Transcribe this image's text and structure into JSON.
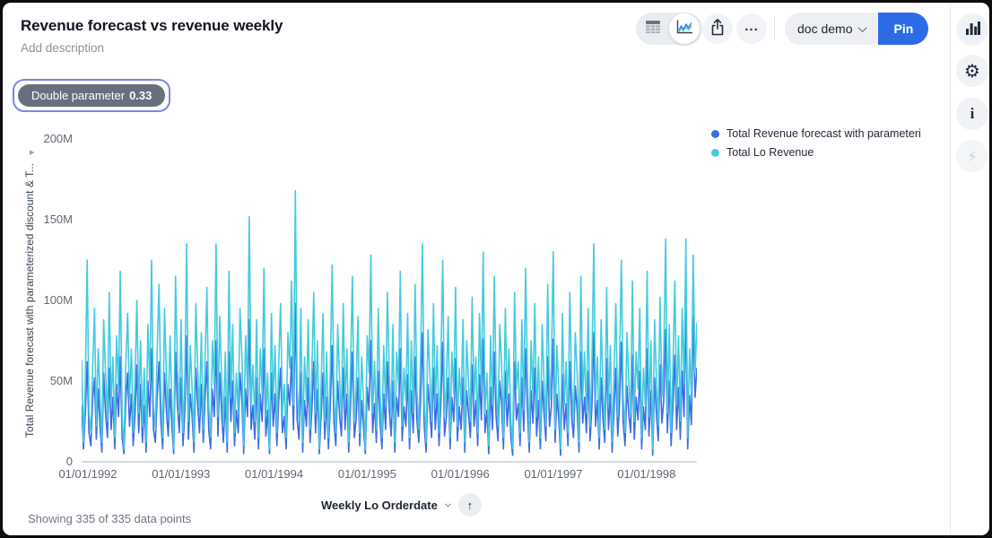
{
  "header": {
    "title": "Revenue forecast vs revenue weekly",
    "description_placeholder": "Add description"
  },
  "parameter": {
    "label": "Double parameter",
    "value": "0.33"
  },
  "toolbar": {
    "view_toggle": {
      "options": [
        "table-view",
        "chart-view"
      ],
      "selected": "chart-view"
    },
    "icons": {
      "table_view": "grid-icon",
      "chart_view": "mini-line-chart-icon",
      "share": "share-arrow-icon",
      "more": "ellipsis-icon"
    },
    "doc_dropdown_label": "doc demo",
    "pin_label": "Pin"
  },
  "sidebar_icons": [
    "bar-chart-icon",
    "gear-icon",
    "info-icon",
    "lightning-icon"
  ],
  "x_axis_control": {
    "label": "Weekly Lo Orderdate",
    "chevron": "chevron-down-icon",
    "sort": "arrow-up-icon"
  },
  "status": {
    "text": "Showing 335 of 335 data points"
  },
  "chart_data": {
    "type": "line",
    "title": "Revenue forecast vs revenue weekly",
    "ylabel": "Total Revenue forecast with parameterized discount & T...",
    "xlabel": "Weekly Lo Orderdate",
    "ylim": [
      0,
      200
    ],
    "unit": "M",
    "grid": false,
    "legend_position": "top-right",
    "y_ticks": [
      {
        "label": "200M",
        "value": 200
      },
      {
        "label": "150M",
        "value": 150
      },
      {
        "label": "100M",
        "value": 100
      },
      {
        "label": "50M",
        "value": 50
      },
      {
        "label": "0",
        "value": 0
      }
    ],
    "x_ticks": [
      "01/01/1992",
      "01/01/1993",
      "01/01/1994",
      "01/01/1995",
      "01/01/1996",
      "01/01/1997",
      "01/01/1998"
    ],
    "points_shown": 335,
    "points_total": 335,
    "series": [
      {
        "name": "Total Revenue forecast with parameteri",
        "color": "#3d6be4",
        "values": [
          35,
          8,
          30,
          62,
          18,
          10,
          38,
          52,
          14,
          45,
          22,
          6,
          55,
          30,
          15,
          58,
          20,
          40,
          8,
          48,
          28,
          65,
          15,
          5,
          38,
          55,
          22,
          42,
          10,
          30,
          60,
          18,
          48,
          12,
          35,
          6,
          50,
          28,
          70,
          20,
          12,
          40,
          62,
          25,
          8,
          55,
          32,
          16,
          45,
          22,
          5,
          68,
          35,
          18,
          52,
          10,
          30,
          78,
          14,
          42,
          28,
          6,
          58,
          35,
          18,
          48,
          12,
          38,
          62,
          20,
          8,
          45,
          28,
          75,
          16,
          55,
          30,
          12,
          40,
          6,
          68,
          25,
          50,
          10,
          32,
          18,
          55,
          38,
          5,
          45,
          28,
          88,
          20,
          35,
          14,
          52,
          8,
          42,
          25,
          70,
          16,
          32,
          5,
          55,
          22,
          42,
          10,
          38,
          58,
          18,
          28,
          8,
          48,
          35,
          65,
          20,
          98,
          26,
          14,
          55,
          6,
          38,
          22,
          52,
          12,
          32,
          62,
          18,
          45,
          5,
          28,
          55,
          14,
          40,
          8,
          35,
          72,
          24,
          10,
          50,
          30,
          16,
          58,
          20,
          42,
          6,
          36,
          68,
          15,
          26,
          52,
          10,
          38,
          22,
          5,
          46,
          32,
          75,
          18,
          36,
          12,
          56,
          25,
          8,
          42,
          20,
          62,
          32,
          16,
          50,
          6,
          40,
          28,
          70,
          13,
          34,
          22,
          54,
          8,
          44,
          18,
          65,
          26,
          12,
          38,
          80,
          22,
          6,
          48,
          32,
          15,
          58,
          20,
          42,
          10,
          36,
          74,
          16,
          28,
          52,
          8,
          40,
          25,
          64,
          13,
          34,
          20,
          52,
          6,
          44,
          30,
          15,
          60,
          22,
          38,
          10,
          54,
          26,
          76,
          18,
          32,
          5,
          46,
          20,
          68,
          28,
          13,
          50,
          35,
          8,
          56,
          22,
          42,
          15,
          4,
          62,
          26,
          36,
          10,
          52,
          19,
          70,
          32,
          6,
          44,
          24,
          58,
          16,
          38,
          8,
          50,
          30,
          13,
          65,
          22,
          34,
          76,
          12,
          42,
          26,
          4,
          54,
          20,
          36,
          10,
          62,
          28,
          15,
          47,
          32,
          6,
          68,
          24,
          40,
          18,
          56,
          13,
          34,
          80,
          22,
          38,
          8,
          52,
          26,
          12,
          64,
          20,
          42,
          6,
          32,
          58,
          16,
          36,
          74,
          24,
          10,
          47,
          30,
          18,
          66,
          14,
          40,
          26,
          56,
          8,
          34,
          20,
          70,
          16,
          44,
          4,
          52,
          30,
          13,
          60,
          24,
          38,
          82,
          18,
          50,
          10,
          35,
          66,
          20,
          46,
          14,
          56,
          28,
          95,
          8,
          41,
          23,
          90,
          40,
          58
        ]
      },
      {
        "name": "Total Lo Revenue",
        "color": "#45cade",
        "values": [
          63,
          12,
          48,
          125,
          30,
          18,
          58,
          95,
          22,
          70,
          40,
          12,
          88,
          55,
          25,
          105,
          35,
          65,
          15,
          78,
          45,
          118,
          28,
          8,
          62,
          92,
          38,
          70,
          18,
          52,
          100,
          30,
          75,
          22,
          58,
          12,
          85,
          48,
          125,
          35,
          20,
          68,
          110,
          42,
          15,
          95,
          55,
          28,
          78,
          38,
          8,
          115,
          60,
          32,
          88,
          18,
          50,
          135,
          25,
          72,
          45,
          12,
          98,
          58,
          30,
          80,
          20,
          62,
          108,
          35,
          15,
          75,
          48,
          135,
          28,
          90,
          52,
          22,
          68,
          12,
          118,
          40,
          85,
          18,
          55,
          30,
          95,
          65,
          10,
          78,
          45,
          152,
          35,
          60,
          25,
          88,
          15,
          70,
          42,
          120,
          28,
          55,
          8,
          92,
          38,
          72,
          18,
          62,
          98,
          30,
          48,
          15,
          80,
          58,
          112,
          35,
          168,
          45,
          25,
          95,
          12,
          65,
          38,
          88,
          20,
          55,
          105,
          30,
          75,
          8,
          48,
          92,
          25,
          68,
          15,
          58,
          122,
          40,
          18,
          85,
          52,
          28,
          98,
          35,
          70,
          12,
          60,
          115,
          25,
          45,
          90,
          18,
          65,
          38,
          8,
          78,
          55,
          128,
          30,
          62,
          20,
          95,
          42,
          15,
          72,
          35,
          105,
          55,
          28,
          85,
          12,
          68,
          48,
          118,
          22,
          58,
          38,
          92,
          15,
          75,
          30,
          110,
          45,
          20,
          65,
          135,
          38,
          12,
          82,
          55,
          25,
          98,
          35,
          72,
          18,
          60,
          125,
          28,
          48,
          90,
          15,
          68,
          42,
          108,
          22,
          58,
          35,
          88,
          12,
          75,
          50,
          25,
          102,
          38,
          65,
          18,
          92,
          45,
          130,
          30,
          55,
          10,
          78,
          35,
          115,
          48,
          22,
          85,
          60,
          15,
          95,
          38,
          70,
          25,
          8,
          105,
          45,
          62,
          18,
          88,
          32,
          120,
          55,
          12,
          75,
          40,
          98,
          28,
          65,
          15,
          85,
          50,
          22,
          110,
          38,
          58,
          130,
          20,
          72,
          45,
          8,
          92,
          35,
          62,
          18,
          105,
          48,
          25,
          80,
          55,
          12,
          115,
          40,
          68,
          30,
          95,
          22,
          58,
          135,
          38,
          65,
          15,
          88,
          45,
          20,
          108,
          35,
          72,
          12,
          55,
          98,
          28,
          62,
          125,
          40,
          18,
          80,
          50,
          30,
          112,
          25,
          68,
          45,
          95,
          15,
          58,
          35,
          118,
          28,
          75,
          8,
          88,
          52,
          22,
          102,
          40,
          65,
          138,
          30,
          85,
          18,
          60,
          112,
          35,
          78,
          25,
          95,
          48,
          138,
          15,
          70,
          40,
          128,
          55,
          86
        ]
      }
    ]
  }
}
